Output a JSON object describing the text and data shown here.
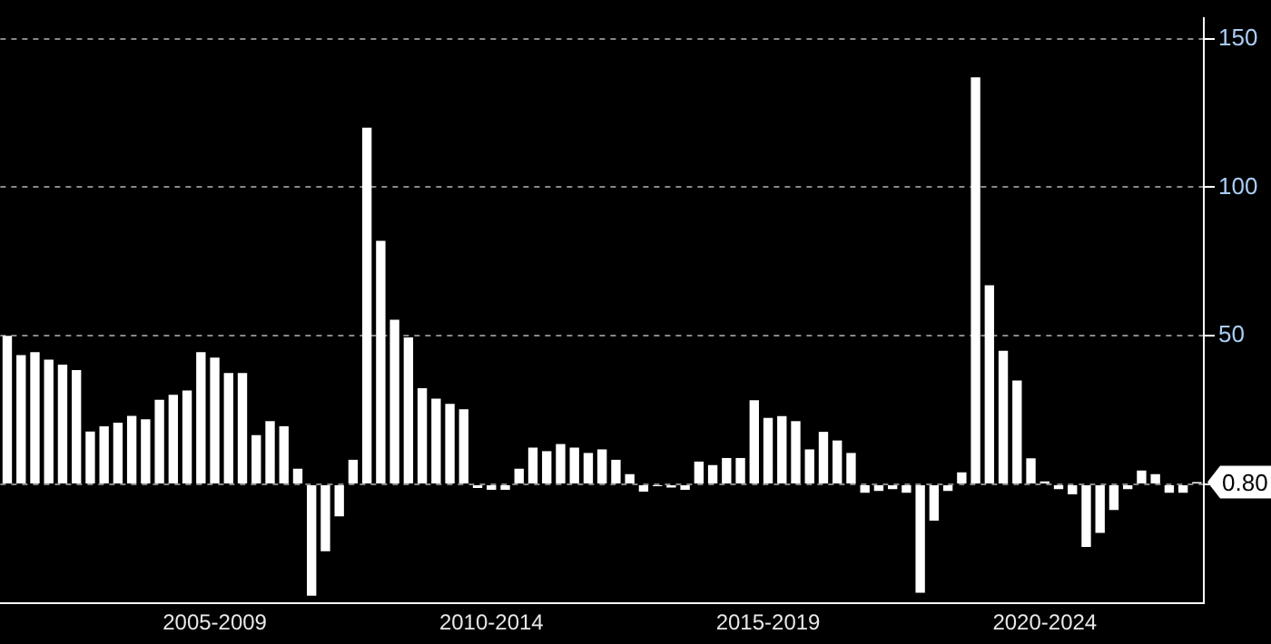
{
  "chart_data": {
    "type": "bar",
    "categories": [
      null,
      null,
      null,
      null,
      null,
      null,
      null,
      null,
      null,
      null,
      null,
      null,
      null,
      null,
      null,
      "2005-2009",
      null,
      null,
      null,
      null,
      null,
      null,
      null,
      null,
      null,
      null,
      null,
      null,
      null,
      null,
      null,
      null,
      null,
      null,
      null,
      "2010-2014",
      null,
      null,
      null,
      null,
      null,
      null,
      null,
      null,
      null,
      null,
      null,
      null,
      null,
      null,
      null,
      null,
      null,
      null,
      null,
      "2015-2019",
      null,
      null,
      null,
      null,
      null,
      null,
      null,
      null,
      null,
      null,
      null,
      null,
      null,
      null,
      null,
      null,
      null,
      null,
      null,
      "2020-2024",
      null,
      null,
      null,
      null,
      null,
      null,
      null,
      null,
      null,
      null,
      null
    ],
    "values": [
      50,
      43.5,
      44.5,
      42,
      40.3,
      38.5,
      17.8,
      19.6,
      20.8,
      23.1,
      21.9,
      28.5,
      30.2,
      31.6,
      44.5,
      42.7,
      37.5,
      37.5,
      16.6,
      21.3,
      19.6,
      5.3,
      -37.4,
      -22.5,
      -10.7,
      8.3,
      120,
      82,
      55.4,
      49.5,
      32.4,
      28.9,
      27.1,
      25.3,
      -1.2,
      -1.8,
      -1.8,
      5.3,
      12.4,
      11.2,
      13.6,
      12.4,
      10.6,
      11.8,
      8.3,
      3.5,
      -2.4,
      -0.6,
      -1,
      -1.8,
      7.7,
      6.5,
      8.9,
      8.9,
      28.3,
      22.4,
      23,
      21.3,
      11.8,
      17.7,
      14.8,
      10.6,
      -2.8,
      -2.2,
      -1.6,
      -2.8,
      -36.4,
      -12.2,
      -2.2,
      4.1,
      137,
      67,
      45,
      35,
      8.8,
      1,
      -1.6,
      -3.3,
      -21,
      -16.3,
      -8.6,
      -1.6,
      4.7,
      3.5,
      -2.8,
      -2.8,
      0.8
    ],
    "color": "#ffffff",
    "ylim": [
      -40,
      157
    ],
    "yticks": [
      {
        "value": 0,
        "label": null
      },
      50,
      100,
      150
    ],
    "grid": "y",
    "legend": false,
    "annotations": [
      "0.80"
    ]
  }
}
